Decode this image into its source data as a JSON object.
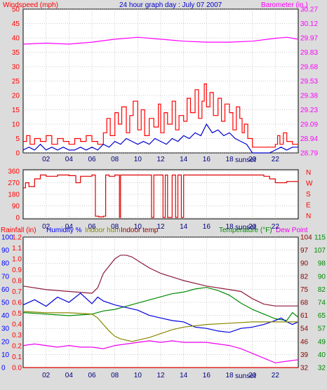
{
  "header": {
    "title": "24 hour graph day : July 07 2007",
    "left_label": "Windspeed (mph)",
    "right_label": "Barometer (in.)"
  },
  "colors": {
    "wind_gust": "#ff0000",
    "wind_avg": "#0000cc",
    "barometer": "#ff00ff",
    "direction": "#dd0000",
    "humidity": "#0000dd",
    "indoor_hum": "#888800",
    "indoor_temp": "#8b1a3a",
    "temperature": "#008800",
    "dew_point": "#ee00ee",
    "rainfall": "#dd0000",
    "axis_red": "#ff0000",
    "axis_blue": "#0000ff",
    "axis_magenta": "#ff00ff",
    "axis_green": "#008800",
    "axis_maroon": "#8b0000",
    "grid": "#999999"
  },
  "x_axis": {
    "tick_labels": [
      "02",
      "04",
      "06",
      "08",
      "10",
      "12",
      "14",
      "16",
      "18",
      "20",
      "22"
    ],
    "sunset_label": "sunset"
  },
  "bottom_legend": {
    "rainfall": "Rainfall (in)",
    "humidity": "Humidity %",
    "indoor_hum": "Indoor hum",
    "indoor_temp": "Indoor temp",
    "temperature": "Temperature (°F)",
    "dew_point": "Dew Point"
  },
  "chart_data": [
    {
      "type": "line",
      "panel": "wind-barometer",
      "x_range": [
        0,
        24
      ],
      "ylim": [
        0,
        50
      ],
      "y_ticks": [
        "0",
        "5",
        "10",
        "15",
        "20",
        "25",
        "30",
        "35",
        "40",
        "45",
        "50"
      ],
      "y2lim": [
        28.79,
        30.27
      ],
      "y2_ticks": [
        "28.79",
        "28.94",
        "29.09",
        "29.23",
        "29.38",
        "29.53",
        "29.68",
        "29.83",
        "29.97",
        "30.12",
        "30.27"
      ],
      "series": [
        {
          "key": "wind_gust",
          "axis": "left",
          "step": true,
          "x": [
            0,
            0.3,
            0.6,
            1,
            1.5,
            2,
            2.5,
            3,
            3.5,
            4,
            4.5,
            5,
            5.5,
            6,
            6.5,
            7,
            7.3,
            7.6,
            8,
            8.3,
            8.6,
            9,
            9.3,
            9.6,
            10,
            10.3,
            10.6,
            11,
            11.4,
            11.8,
            12,
            12.3,
            12.6,
            13,
            13.3,
            13.6,
            14,
            14.3,
            14.6,
            15,
            15.3,
            15.6,
            15.8,
            16,
            16.3,
            16.6,
            17,
            17.3,
            17.6,
            18,
            18.3,
            18.6,
            18.9,
            19.1,
            19.3,
            19.6,
            20,
            20.5,
            21,
            21.5,
            22,
            22.2,
            22.4,
            22.7,
            23,
            23.5,
            24
          ],
          "values": [
            4,
            6,
            3,
            5,
            4,
            6,
            3,
            5,
            4,
            3,
            5,
            4,
            6,
            4,
            3,
            7,
            12,
            6,
            14,
            10,
            16,
            7,
            13,
            18,
            8,
            15,
            6,
            12,
            9,
            17,
            7,
            14,
            10,
            18,
            8,
            13,
            11,
            19,
            14,
            22,
            12,
            18,
            24,
            16,
            21,
            13,
            19,
            11,
            17,
            14,
            8,
            16,
            12,
            7,
            10,
            5,
            2,
            2,
            2,
            2,
            3,
            6,
            3,
            7,
            4,
            3,
            3
          ]
        },
        {
          "key": "wind_avg",
          "axis": "left",
          "step": false,
          "x": [
            0,
            0.5,
            1,
            1.5,
            2,
            2.5,
            3,
            3.5,
            4,
            4.5,
            5,
            5.5,
            6,
            6.5,
            7,
            7.5,
            8,
            8.5,
            9,
            9.5,
            10,
            10.5,
            11,
            11.5,
            12,
            12.5,
            13,
            13.5,
            14,
            14.5,
            15,
            15.5,
            16,
            16.5,
            17,
            17.5,
            18,
            18.5,
            19,
            19.5,
            20,
            20.5,
            21,
            21.5,
            22,
            22.5,
            23,
            23.5,
            24
          ],
          "values": [
            1,
            2,
            1,
            3,
            1,
            2,
            1,
            2,
            1,
            1,
            2,
            1,
            2,
            1,
            3,
            2,
            4,
            3,
            5,
            4,
            3,
            4,
            3,
            5,
            4,
            3,
            5,
            4,
            6,
            5,
            7,
            6,
            10,
            7,
            8,
            6,
            7,
            5,
            4,
            3,
            0,
            0,
            0,
            0,
            1,
            2,
            1,
            2,
            2
          ]
        },
        {
          "key": "barometer",
          "axis": "right",
          "step": false,
          "x": [
            0,
            2,
            4,
            6,
            8,
            10,
            12,
            14,
            16,
            18,
            20,
            22,
            23,
            24
          ],
          "values": [
            29.91,
            29.92,
            29.91,
            29.93,
            29.96,
            29.98,
            29.96,
            29.94,
            29.93,
            29.93,
            29.94,
            29.97,
            29.98,
            29.96
          ]
        }
      ]
    },
    {
      "type": "line",
      "panel": "wind-direction",
      "x_range": [
        0,
        24
      ],
      "ylim": [
        0,
        360
      ],
      "y_ticks": [
        "0",
        "90",
        "180",
        "270",
        "360"
      ],
      "y2_ticks": [
        "N",
        "W",
        "S",
        "E",
        "N"
      ],
      "series": [
        {
          "key": "direction",
          "axis": "left",
          "step": true,
          "x": [
            0,
            0.2,
            0.5,
            1,
            1.5,
            2,
            3,
            4,
            4.6,
            5,
            6,
            6.3,
            6.6,
            7,
            7.2,
            7.5,
            8,
            8.4,
            8.5,
            9,
            11,
            11.2,
            11.4,
            12,
            12.2,
            12.4,
            12.6,
            13,
            13.3,
            13.5,
            13.8,
            14,
            16,
            18,
            20,
            21,
            21.5,
            22,
            23,
            24
          ],
          "values": [
            230,
            270,
            240,
            300,
            330,
            320,
            330,
            325,
            270,
            320,
            330,
            10,
            5,
            10,
            330,
            320,
            330,
            0,
            330,
            330,
            330,
            0,
            330,
            330,
            0,
            330,
            0,
            330,
            0,
            330,
            0,
            330,
            330,
            330,
            330,
            320,
            300,
            270,
            280,
            290
          ]
        }
      ]
    },
    {
      "type": "line",
      "panel": "humidity-temperature-rain",
      "x_range": [
        0,
        24
      ],
      "humidity_ylim": [
        0,
        100
      ],
      "humidity_ticks": [
        "0",
        "10",
        "20",
        "30",
        "40",
        "50",
        "60",
        "70",
        "80",
        "90",
        "100"
      ],
      "rain_ylim": [
        0,
        1.2
      ],
      "rain_ticks": [
        "0.0",
        "0.1",
        "0.2",
        "0.3",
        "0.4",
        "0.5",
        "0.6",
        "0.7",
        "0.8",
        "0.9",
        "1.0",
        "1.1",
        "1.2"
      ],
      "temperature_ylim": [
        32,
        115
      ],
      "temperature_ticks": [
        "32",
        "40",
        "49",
        "57",
        "65",
        "74",
        "82",
        "90",
        "98",
        "107",
        "115"
      ],
      "indoor_temp_ylim": [
        32,
        104
      ],
      "indoor_temp_ticks": [
        "32",
        "39",
        "46",
        "54",
        "61",
        "68",
        "75",
        "82",
        "90",
        "97",
        "104"
      ],
      "series": [
        {
          "key": "indoor_temp",
          "scale": "indoor_temp",
          "x": [
            0,
            2,
            4,
            6,
            6.5,
            7,
            8,
            8.5,
            9,
            9.5,
            10,
            11,
            12,
            14,
            16,
            18,
            19,
            20,
            21,
            22,
            24
          ],
          "values": [
            77,
            75,
            74,
            73,
            76,
            84,
            92,
            94,
            94,
            93,
            91,
            87,
            84,
            80,
            77,
            75,
            74,
            70,
            67,
            66,
            66
          ]
        },
        {
          "key": "temperature",
          "scale": "temperature",
          "x": [
            0,
            2,
            4,
            6,
            7,
            8,
            9,
            10,
            11,
            12,
            13,
            14,
            15,
            16,
            17,
            18,
            19,
            20,
            21,
            22,
            23,
            23.5,
            24
          ],
          "values": [
            67,
            66,
            65,
            66,
            68,
            69,
            71,
            73,
            75,
            77,
            79,
            80,
            82,
            83,
            81,
            78,
            73,
            69,
            66,
            63,
            62,
            67,
            64
          ]
        },
        {
          "key": "humidity",
          "scale": "humidity",
          "x": [
            0,
            1,
            2,
            3,
            4,
            5,
            6,
            6.5,
            7,
            8,
            9,
            10,
            11,
            12,
            13,
            14,
            15,
            16,
            17,
            18,
            19,
            20,
            21,
            22,
            22.5,
            23,
            23.5,
            24
          ],
          "values": [
            48,
            52,
            47,
            54,
            50,
            57,
            49,
            54,
            51,
            48,
            46,
            44,
            40,
            38,
            36,
            35,
            31,
            30,
            28,
            27,
            30,
            31,
            33,
            36,
            38,
            35,
            33,
            35
          ]
        },
        {
          "key": "indoor_hum",
          "scale": "humidity",
          "x": [
            0,
            2,
            4,
            6,
            6.5,
            7,
            7.5,
            8,
            8.5,
            9,
            9.5,
            10,
            11,
            12,
            13,
            14,
            15,
            16,
            18,
            20,
            22,
            24
          ],
          "values": [
            43,
            42,
            42,
            41,
            38,
            33,
            28,
            24,
            22,
            21,
            20,
            21,
            23,
            26,
            29,
            31,
            32,
            33,
            34,
            35,
            35,
            35
          ]
        },
        {
          "key": "dew_point",
          "scale": "temperature",
          "x": [
            0,
            1,
            2,
            3,
            4,
            5,
            6,
            7,
            8,
            9,
            10,
            11,
            12,
            13,
            14,
            15,
            16,
            17,
            18,
            19,
            20,
            21,
            22,
            23,
            24
          ],
          "values": [
            46,
            47,
            46,
            45,
            46,
            45,
            45,
            44,
            46,
            47,
            48,
            49,
            48,
            49,
            48,
            48,
            48,
            47,
            46,
            44,
            41,
            38,
            35,
            36,
            37
          ]
        },
        {
          "key": "rainfall",
          "scale": "rain",
          "x": [
            0,
            24
          ],
          "values": [
            0,
            0
          ]
        }
      ]
    }
  ]
}
